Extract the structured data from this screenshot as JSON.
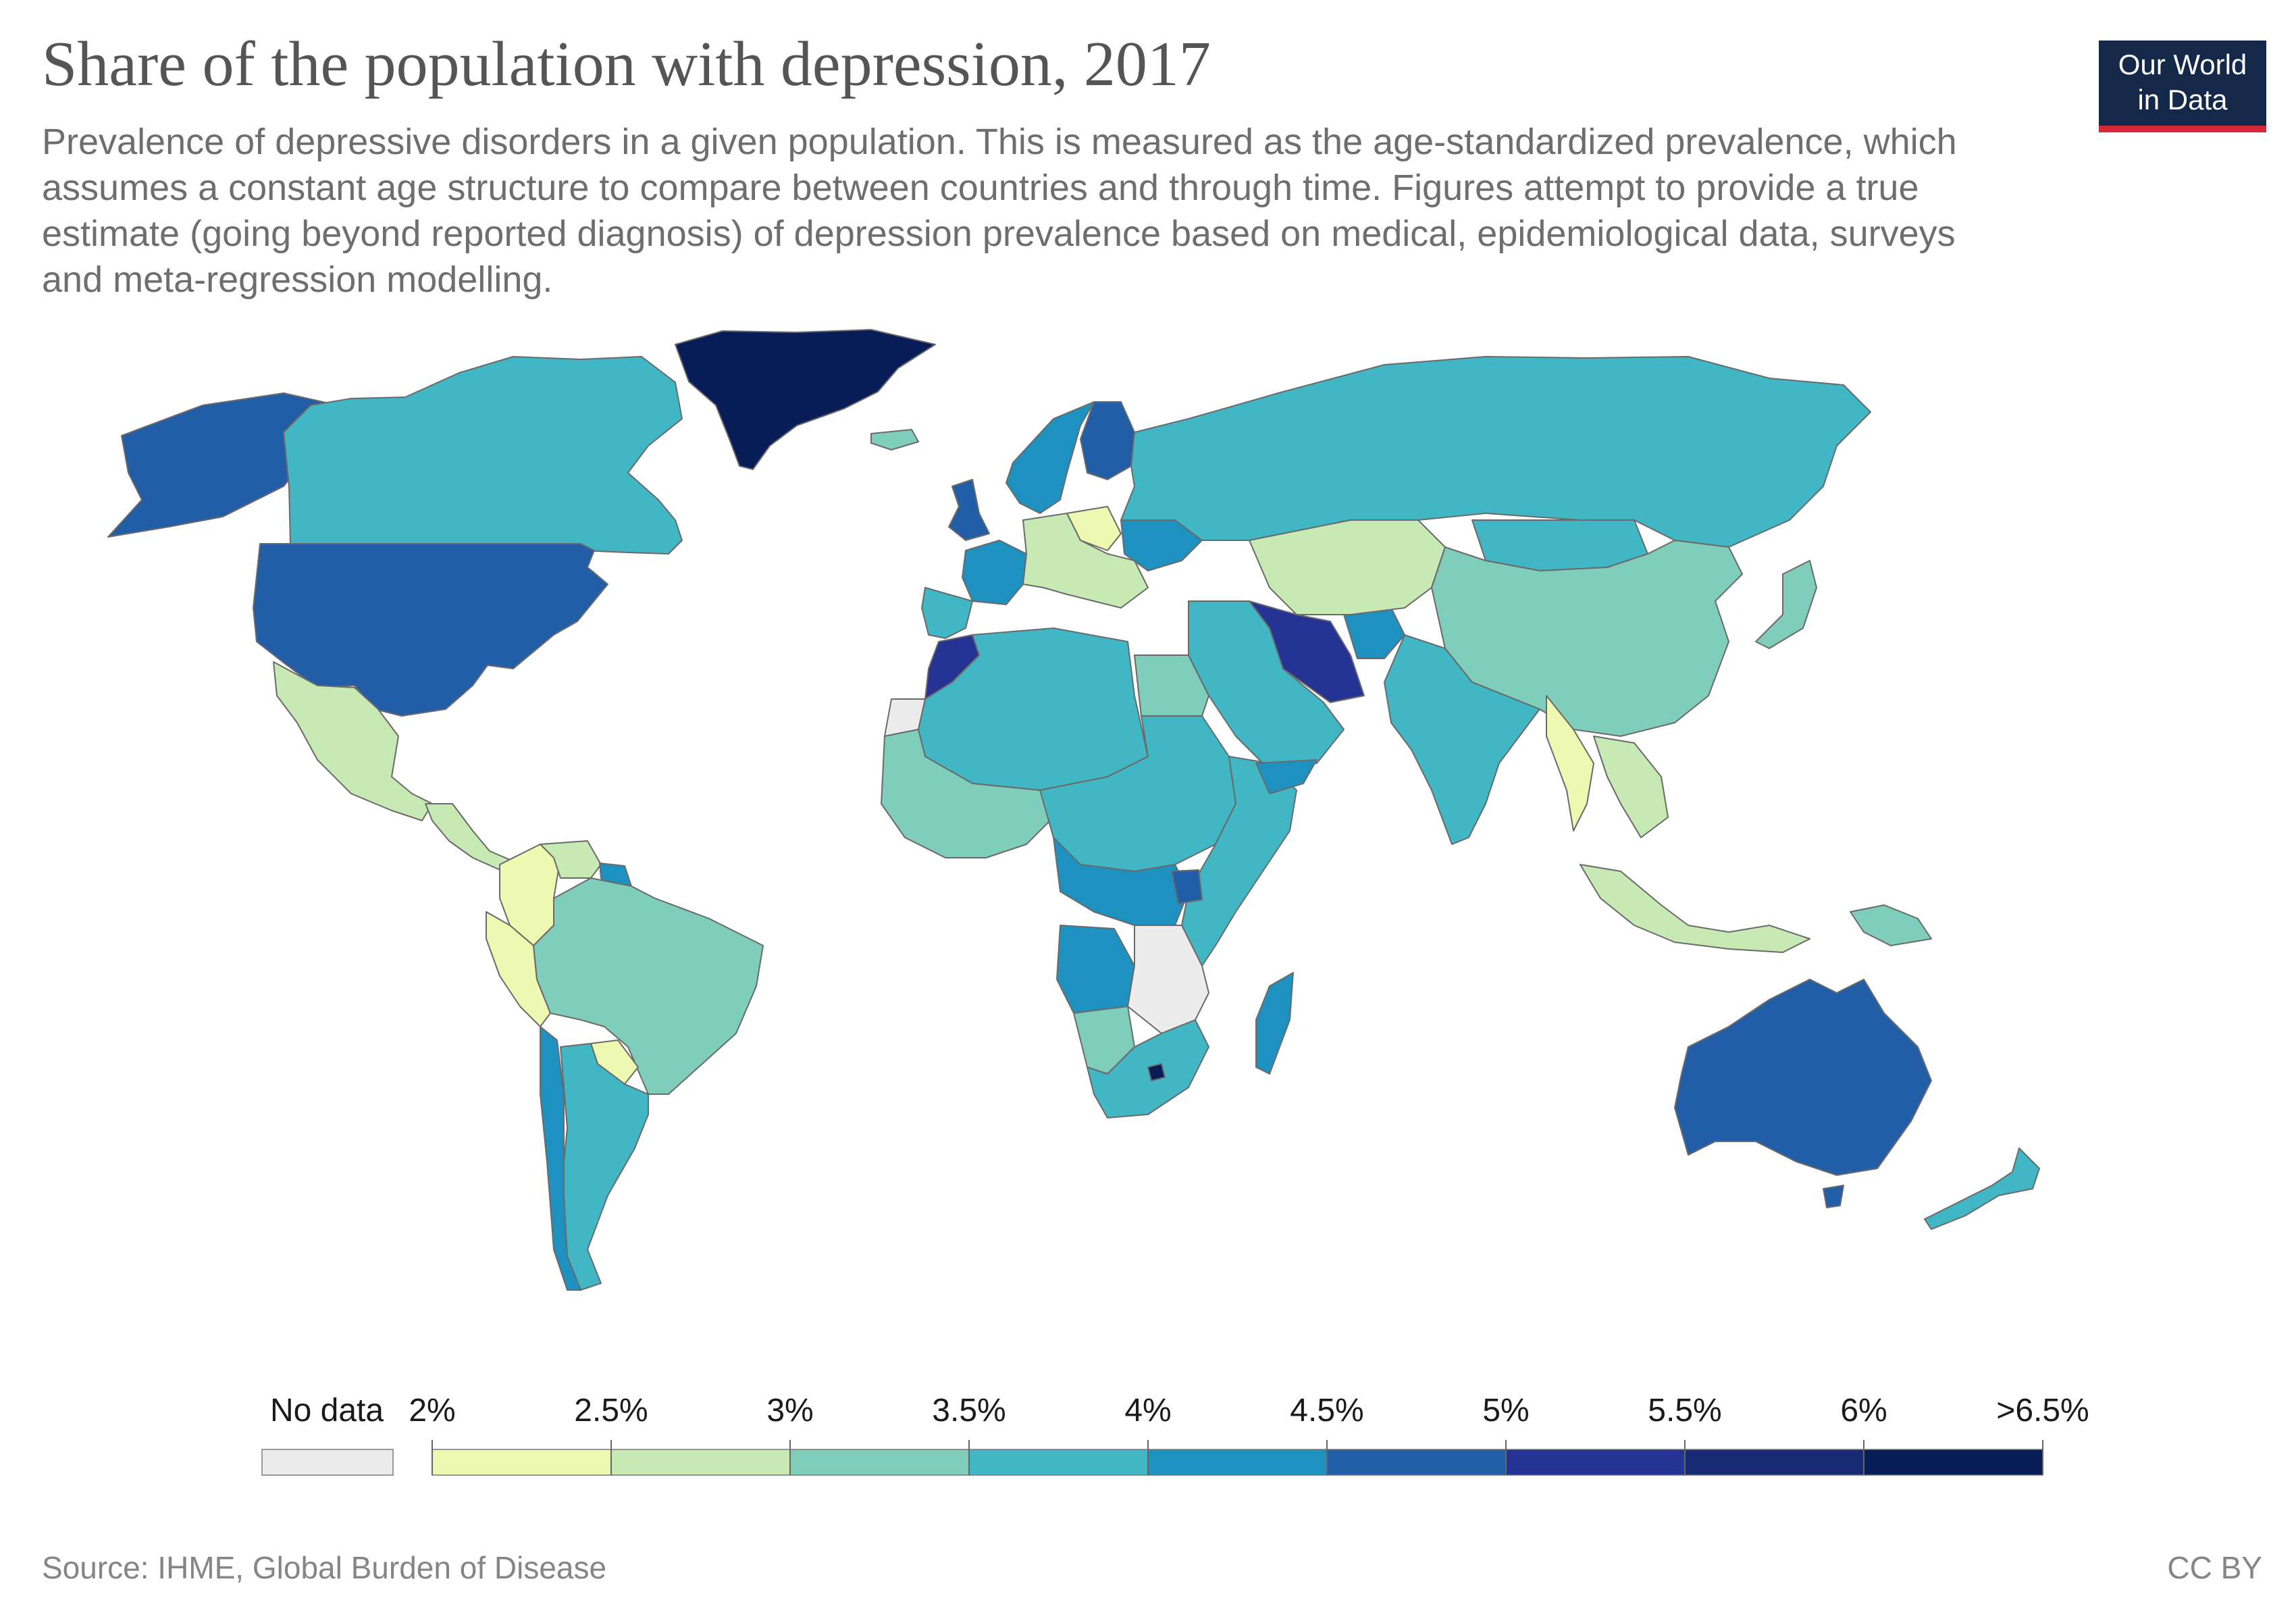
{
  "header": {
    "title": "Share of the population with depression, 2017",
    "subtitle": "Prevalence of depressive disorders in a given population. This is measured as the age-standardized prevalence, which assumes a constant age structure to compare between countries and through time. Figures attempt to provide a true estimate (going beyond reported diagnosis) of depression prevalence based on medical, epidemiological data, surveys and meta-regression modelling."
  },
  "logo": {
    "line1": "Our World",
    "line2": "in Data"
  },
  "legend": {
    "no_data_label": "No data",
    "no_data_color": "#ececec",
    "ticks": [
      "2%",
      "2.5%",
      "3%",
      "3.5%",
      "4%",
      "4.5%",
      "5%",
      "5.5%",
      "6%",
      ">6.5%"
    ],
    "bin_colors": [
      "#edf8b1",
      "#c7e9b4",
      "#7fcdbb",
      "#41b6c4",
      "#1d91c0",
      "#225ea8",
      "#253494",
      "#172a73",
      "#081d58"
    ]
  },
  "map_data": {
    "metric": "Share of the population with depression",
    "year": "2017",
    "regions": [
      {
        "name": "Greenland",
        "bin": 8
      },
      {
        "name": "Canada",
        "bin": 3
      },
      {
        "name": "United States",
        "bin": 5
      },
      {
        "name": "Alaska",
        "bin": 5
      },
      {
        "name": "Mexico",
        "bin": 1
      },
      {
        "name": "Central America",
        "bin": 1
      },
      {
        "name": "Colombia",
        "bin": 0
      },
      {
        "name": "Venezuela",
        "bin": 1
      },
      {
        "name": "Guyana",
        "bin": 4
      },
      {
        "name": "Peru",
        "bin": 0
      },
      {
        "name": "Brazil",
        "bin": 2
      },
      {
        "name": "Paraguay",
        "bin": 0
      },
      {
        "name": "Argentina",
        "bin": 3
      },
      {
        "name": "Chile",
        "bin": 4
      },
      {
        "name": "Iceland",
        "bin": 2
      },
      {
        "name": "Scandinavia",
        "bin": 4
      },
      {
        "name": "Finland",
        "bin": 5
      },
      {
        "name": "United Kingdom",
        "bin": 5
      },
      {
        "name": "France",
        "bin": 4
      },
      {
        "name": "Iberia",
        "bin": 3
      },
      {
        "name": "Poland",
        "bin": 0
      },
      {
        "name": "Central Europe",
        "bin": 1
      },
      {
        "name": "Ukraine",
        "bin": 4
      },
      {
        "name": "Russia",
        "bin": 3
      },
      {
        "name": "Morocco",
        "bin": 6
      },
      {
        "name": "North Africa",
        "bin": 3
      },
      {
        "name": "Egypt",
        "bin": 2
      },
      {
        "name": "West Africa",
        "bin": 2
      },
      {
        "name": "Central Africa",
        "bin": 3
      },
      {
        "name": "Congo",
        "bin": 4
      },
      {
        "name": "Uganda",
        "bin": 5
      },
      {
        "name": "East Africa",
        "bin": 3
      },
      {
        "name": "Angola",
        "bin": 4
      },
      {
        "name": "Namibia",
        "bin": 2
      },
      {
        "name": "South Africa",
        "bin": 3
      },
      {
        "name": "Lesotho",
        "bin": 8
      },
      {
        "name": "Madagascar",
        "bin": 4
      },
      {
        "name": "Western Sahara",
        "bin": -1
      },
      {
        "name": "Iran",
        "bin": 6
      },
      {
        "name": "Afghanistan",
        "bin": 4
      },
      {
        "name": "Middle East",
        "bin": 3
      },
      {
        "name": "Yemen",
        "bin": 4
      },
      {
        "name": "Central Asia",
        "bin": 1
      },
      {
        "name": "China",
        "bin": 2
      },
      {
        "name": "Mongolia",
        "bin": 3
      },
      {
        "name": "India",
        "bin": 3
      },
      {
        "name": "Myanmar",
        "bin": 0
      },
      {
        "name": "Southeast Asia",
        "bin": 1
      },
      {
        "name": "Japan",
        "bin": 2
      },
      {
        "name": "Indonesia",
        "bin": 1
      },
      {
        "name": "Australia",
        "bin": 5
      },
      {
        "name": "Tasmania",
        "bin": 5
      },
      {
        "name": "New Zealand",
        "bin": 3
      },
      {
        "name": "Papua New Guinea",
        "bin": 2
      }
    ]
  },
  "footer": {
    "source": "Source: IHME, Global Burden of Disease",
    "license": "CC BY"
  }
}
